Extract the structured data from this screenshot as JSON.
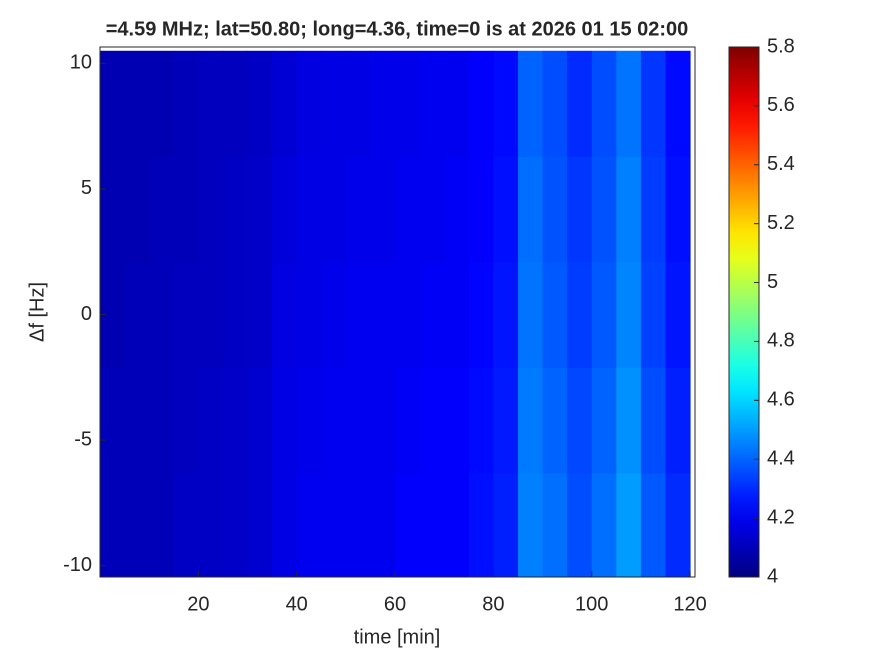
{
  "chart_data": {
    "type": "heatmap",
    "title": "=4.59 MHz;  lat=50.80; long=4.36, time=0 is at 2026 01 15 02:00",
    "xlabel": "time [min]",
    "ylabel": "Δf [Hz]",
    "x": [
      2.5,
      7.5,
      12.5,
      17.5,
      22.5,
      27.5,
      32.5,
      37.5,
      42.5,
      47.5,
      52.5,
      57.5,
      62.5,
      67.5,
      72.5,
      77.5,
      82.5,
      87.5,
      92.5,
      97.5,
      102.5,
      107.5,
      112.5,
      117.5
    ],
    "y": [
      -8.4,
      -4.2,
      0,
      4.2,
      8.4
    ],
    "values": [
      [
        4.1,
        4.1,
        4.1,
        4.12,
        4.12,
        4.13,
        4.14,
        4.18,
        4.2,
        4.2,
        4.2,
        4.2,
        4.22,
        4.22,
        4.22,
        4.25,
        4.28,
        4.45,
        4.42,
        4.36,
        4.42,
        4.5,
        4.38,
        4.3
      ],
      [
        4.1,
        4.1,
        4.1,
        4.11,
        4.12,
        4.13,
        4.14,
        4.18,
        4.19,
        4.2,
        4.2,
        4.2,
        4.21,
        4.22,
        4.22,
        4.24,
        4.27,
        4.44,
        4.4,
        4.35,
        4.4,
        4.48,
        4.36,
        4.28
      ],
      [
        4.09,
        4.1,
        4.1,
        4.11,
        4.11,
        4.12,
        4.13,
        4.17,
        4.18,
        4.19,
        4.2,
        4.2,
        4.2,
        4.21,
        4.21,
        4.23,
        4.26,
        4.43,
        4.38,
        4.33,
        4.38,
        4.46,
        4.34,
        4.26
      ],
      [
        4.09,
        4.09,
        4.1,
        4.1,
        4.11,
        4.12,
        4.13,
        4.16,
        4.18,
        4.18,
        4.19,
        4.19,
        4.2,
        4.2,
        4.21,
        4.22,
        4.25,
        4.42,
        4.37,
        4.32,
        4.37,
        4.45,
        4.33,
        4.25
      ],
      [
        4.09,
        4.09,
        4.09,
        4.1,
        4.11,
        4.11,
        4.12,
        4.15,
        4.17,
        4.18,
        4.18,
        4.19,
        4.19,
        4.2,
        4.2,
        4.22,
        4.24,
        4.4,
        4.36,
        4.3,
        4.36,
        4.43,
        4.32,
        4.24
      ]
    ],
    "colormap": "jet",
    "xlim": [
      0,
      121
    ],
    "xticks": [
      20,
      40,
      60,
      80,
      100,
      120
    ],
    "ylim": [
      -10.45,
      10.65
    ],
    "yticks": [
      -10,
      -5,
      0,
      5,
      10
    ],
    "clim": [
      4,
      5.8
    ],
    "cticks": [
      4,
      4.2,
      4.4,
      4.6,
      4.8,
      5,
      5.2,
      5.4,
      5.6,
      5.8
    ]
  }
}
